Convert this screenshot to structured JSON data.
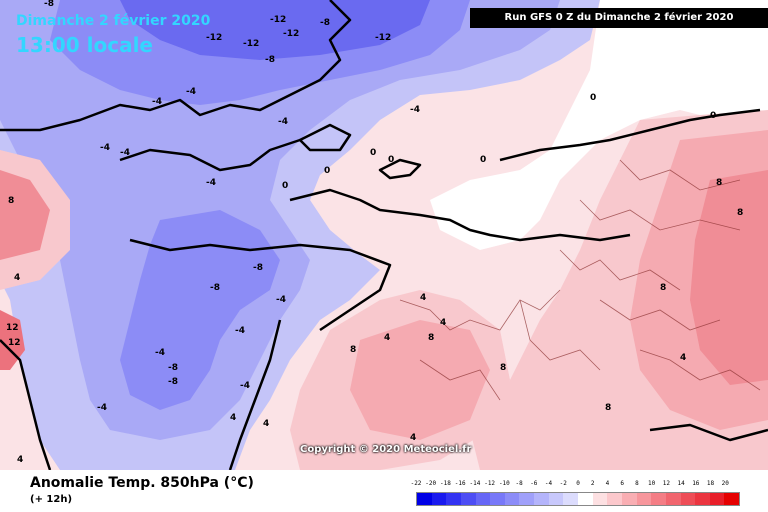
{
  "header": {
    "date": "Dimanche 2 février 2020",
    "time": "13:00 locale",
    "run": "Run GFS 0 Z du Dimanche 2 février 2020"
  },
  "copyright": "Copyright © 2020 Meteociel.fr",
  "legend": {
    "title": "Anomalie Temp. 850hPa (°C)",
    "subtitle": "(+ 12h)",
    "ticks": [
      "-22",
      "-20",
      "-18",
      "-16",
      "-14",
      "-12",
      "-10",
      "-8",
      "-6",
      "-4",
      "-2",
      "0",
      "2",
      "4",
      "6",
      "8",
      "10",
      "12",
      "14",
      "16",
      "18",
      "20"
    ],
    "colors": [
      "#0000e6",
      "#1a1aee",
      "#3333f2",
      "#4d4df4",
      "#6666f6",
      "#7878f8",
      "#8c8cf8",
      "#a0a0fa",
      "#b4b4fb",
      "#c8c8fc",
      "#dcdcfd",
      "#ffffff",
      "#fde0e2",
      "#fcc8cc",
      "#f9aeb3",
      "#f7969c",
      "#f47d85",
      "#f1656e",
      "#ee4d57",
      "#eb3540",
      "#e81e29",
      "#e50000"
    ]
  },
  "map": {
    "colors": {
      "anomaly_minus_12": "#6a6af0",
      "anomaly_minus_8": "#8c8cf6",
      "anomaly_minus_4": "#a9a9f6",
      "anomaly_minus_2": "#c4c4f8",
      "anomaly_zero": "#ffffff",
      "anomaly_plus_2": "#fbe3e6",
      "anomaly_plus_4": "#f8c8cd",
      "anomaly_plus_6": "#f5aab1",
      "anomaly_plus_8": "#f08d96",
      "anomaly_plus_10": "#ec727d",
      "coast_line": "#000000",
      "border_line": "#8a3030"
    },
    "contour_labels": [
      {
        "text": "-8",
        "x": 1,
        "y": 1
      },
      {
        "text": "-12",
        "x": 1,
        "y": 2
      },
      {
        "text": "-12",
        "x": 1,
        "y": 3
      },
      {
        "text": "-12",
        "x": 1,
        "y": 4
      },
      {
        "text": "-12",
        "x": 1,
        "y": 5
      },
      {
        "text": "-12",
        "x": 1,
        "y": 6
      },
      {
        "text": "-8",
        "x": 1,
        "y": 7
      },
      {
        "text": "-8",
        "x": 1,
        "y": 8
      },
      {
        "text": "-4",
        "x": 1,
        "y": 9
      },
      {
        "text": "-4",
        "x": 1,
        "y": 10
      },
      {
        "text": "-4",
        "x": 1,
        "y": 11
      },
      {
        "text": "-4",
        "x": 1,
        "y": 12
      },
      {
        "text": "-4",
        "x": 1,
        "y": 13
      },
      {
        "text": "-4",
        "x": 1,
        "y": 14
      },
      {
        "text": "-4",
        "x": 1,
        "y": 15
      },
      {
        "text": "0",
        "x": 1,
        "y": 16
      },
      {
        "text": "0",
        "x": 1,
        "y": 17
      },
      {
        "text": "0",
        "x": 1,
        "y": 18
      },
      {
        "text": "0",
        "x": 1,
        "y": 19
      },
      {
        "text": "0",
        "x": 1,
        "y": 20
      },
      {
        "text": "0",
        "x": 1,
        "y": 21
      },
      {
        "text": "0",
        "x": 1,
        "y": 22
      },
      {
        "text": "8",
        "x": 1,
        "y": 23
      },
      {
        "text": "8",
        "x": 1,
        "y": 24
      },
      {
        "text": "12",
        "x": 1,
        "y": 25
      },
      {
        "text": "12",
        "x": 1,
        "y": 26
      },
      {
        "text": "-8",
        "x": 1,
        "y": 27
      },
      {
        "text": "-8",
        "x": 1,
        "y": 28
      },
      {
        "text": "-8",
        "x": 1,
        "y": 29
      },
      {
        "text": "-8",
        "x": 1,
        "y": 30
      },
      {
        "text": "-4",
        "x": 1,
        "y": 31
      },
      {
        "text": "-4",
        "x": 1,
        "y": 32
      },
      {
        "text": "-4",
        "x": 1,
        "y": 33
      },
      {
        "text": "-4",
        "x": 1,
        "y": 34
      },
      {
        "text": "4",
        "x": 1,
        "y": 35
      },
      {
        "text": "4",
        "x": 1,
        "y": 36
      },
      {
        "text": "4",
        "x": 1,
        "y": 37
      },
      {
        "text": "4",
        "x": 1,
        "y": 38
      },
      {
        "text": "4",
        "x": 1,
        "y": 39
      },
      {
        "text": "8",
        "x": 1,
        "y": 40
      },
      {
        "text": "8",
        "x": 1,
        "y": 41
      },
      {
        "text": "8",
        "x": 1,
        "y": 42
      },
      {
        "text": "8",
        "x": 1,
        "y": 43
      },
      {
        "text": "8",
        "x": 1,
        "y": 44
      },
      {
        "text": "8",
        "x": 1,
        "y": 45
      },
      {
        "text": "4",
        "x": 1,
        "y": 46
      },
      {
        "text": "4",
        "x": 1,
        "y": 47
      },
      {
        "text": "4",
        "x": 1,
        "y": 48
      },
      {
        "text": "-4",
        "x": 1,
        "y": 49
      },
      {
        "text": "4",
        "x": 1,
        "y": 50
      }
    ]
  }
}
